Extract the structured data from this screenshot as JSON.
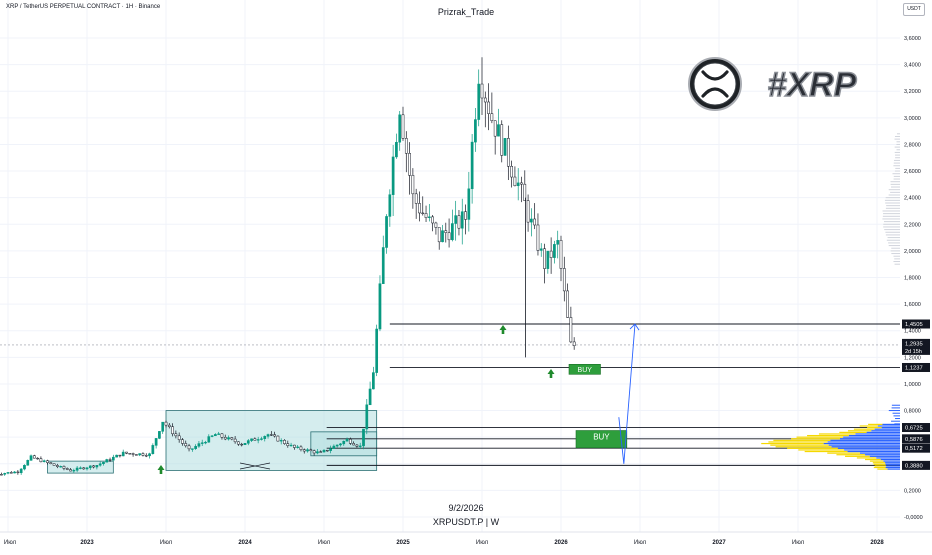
{
  "header": {
    "symbol_info": "XRP / TetherUS PERPETUAL CONTRACT · 1Н · Binance",
    "author": "Prizrak_Trade",
    "currency": "USDT"
  },
  "footer": {
    "date_label": "9/2/2026",
    "symbol_label": "XRPUSDT.P  |  W"
  },
  "logo": {
    "hashtag_text": "#XRP"
  },
  "colors": {
    "up": "#089981",
    "down": "#131722",
    "level_line": "#131722",
    "range_box": "#b2dfe0",
    "range_box_border": "#2a6f73",
    "buy_box": "#2e9e3c",
    "arrow_up": "#1f8a2c",
    "forecast_line": "#2962ff",
    "volume_blue": "#2962ff",
    "volume_yellow": "#f5d800"
  },
  "chart_data": {
    "type": "candlestick",
    "title": "",
    "xlabel": "",
    "ylabel": "",
    "ylim": [
      -0.1,
      3.7
    ],
    "y_ticks": [
      "-0,0000",
      "0,2000",
      "0,4000",
      "0,6000",
      "0,8000",
      "1,0000",
      "1,2000",
      "1,4000",
      "1,6000",
      "1,8000",
      "2,0000",
      "2,2000",
      "2,4000",
      "2,6000",
      "2,8000",
      "3,0000",
      "3,2000",
      "3,4000",
      "3,6000"
    ],
    "y_tick_values": [
      0,
      0.2,
      0.4,
      0.6,
      0.8,
      1.0,
      1.2,
      1.4,
      1.6,
      1.8,
      2.0,
      2.2,
      2.4,
      2.6,
      2.8,
      3.0,
      3.2,
      3.4,
      3.6
    ],
    "x_ticks": [
      {
        "label": "Июл",
        "date": "2022-07"
      },
      {
        "label": "2023",
        "date": "2023-01"
      },
      {
        "label": "Июл",
        "date": "2023-07"
      },
      {
        "label": "2024",
        "date": "2024-01"
      },
      {
        "label": "Июл",
        "date": "2024-07"
      },
      {
        "label": "2025",
        "date": "2025-01"
      },
      {
        "label": "Июл",
        "date": "2025-07"
      },
      {
        "label": "2026",
        "date": "2026-01"
      },
      {
        "label": "Июл",
        "date": "2026-07"
      },
      {
        "label": "2027",
        "date": "2027-01"
      },
      {
        "label": "Июл",
        "date": "2027-07"
      },
      {
        "label": "2028",
        "date": "2028-01"
      }
    ],
    "x_range": [
      "2022-06",
      "2028-02"
    ],
    "price_path": [
      [
        "2022-06",
        0.32
      ],
      [
        "2022-08",
        0.34
      ],
      [
        "2022-09",
        0.45
      ],
      [
        "2022-11",
        0.38
      ],
      [
        "2022-12",
        0.35
      ],
      [
        "2023-02",
        0.39
      ],
      [
        "2023-04",
        0.48
      ],
      [
        "2023-06",
        0.47
      ],
      [
        "2023-07",
        0.72
      ],
      [
        "2023-09",
        0.5
      ],
      [
        "2023-11",
        0.62
      ],
      [
        "2024-01",
        0.55
      ],
      [
        "2024-03",
        0.62
      ],
      [
        "2024-05",
        0.52
      ],
      [
        "2024-07",
        0.48
      ],
      [
        "2024-09",
        0.58
      ],
      [
        "2024-10",
        0.53
      ],
      [
        "2024-11",
        1.1
      ],
      [
        "2024-12",
        2.3
      ],
      [
        "2025-01",
        3.1
      ],
      [
        "2025-02",
        2.4
      ],
      [
        "2025-04",
        2.1
      ],
      [
        "2025-06",
        2.25
      ],
      [
        "2025-07",
        3.35
      ],
      [
        "2025-08",
        3.0
      ],
      [
        "2025-10",
        2.5
      ],
      [
        "2025-11",
        2.2
      ],
      [
        "2025-12",
        1.9
      ],
      [
        "2026-01",
        2.05
      ],
      [
        "2026-02",
        1.29
      ]
    ],
    "current_price": 1.2935,
    "countdown": "2d 15h",
    "levels": [
      {
        "label": "1,4505",
        "value": 1.4505
      },
      {
        "label": "1,1237",
        "value": 1.1237
      },
      {
        "label": "0,6725",
        "value": 0.6725
      },
      {
        "label": "0,5876",
        "value": 0.5876
      },
      {
        "label": "0,5172",
        "value": 0.5172
      },
      {
        "label": "0,3880",
        "value": 0.388
      }
    ],
    "current_price_label": "1,2935",
    "range_boxes": [
      {
        "from": "2022-10",
        "to": "2023-03",
        "low": 0.33,
        "high": 0.42
      },
      {
        "from": "2023-07",
        "to": "2024-11",
        "low": 0.35,
        "high": 0.8
      },
      {
        "from": "2024-06",
        "to": "2024-11",
        "low": 0.46,
        "high": 0.64
      }
    ],
    "buy_zones": [
      {
        "label": "BUY",
        "from": "2026-01",
        "to": "2026-04",
        "value": 1.11
      },
      {
        "label": "BUY",
        "from": "2026-01",
        "to": "2026-06",
        "low": 0.52,
        "high": 0.65
      }
    ],
    "forecast_path": [
      [
        "2026-06",
        0.75
      ],
      [
        "2026-06",
        0.4
      ],
      [
        "2026-07",
        1.45
      ]
    ],
    "volume_profile": "right-side horizontal histogram, heavy between 0,39 and 0,67 and 2,0–2,8"
  }
}
